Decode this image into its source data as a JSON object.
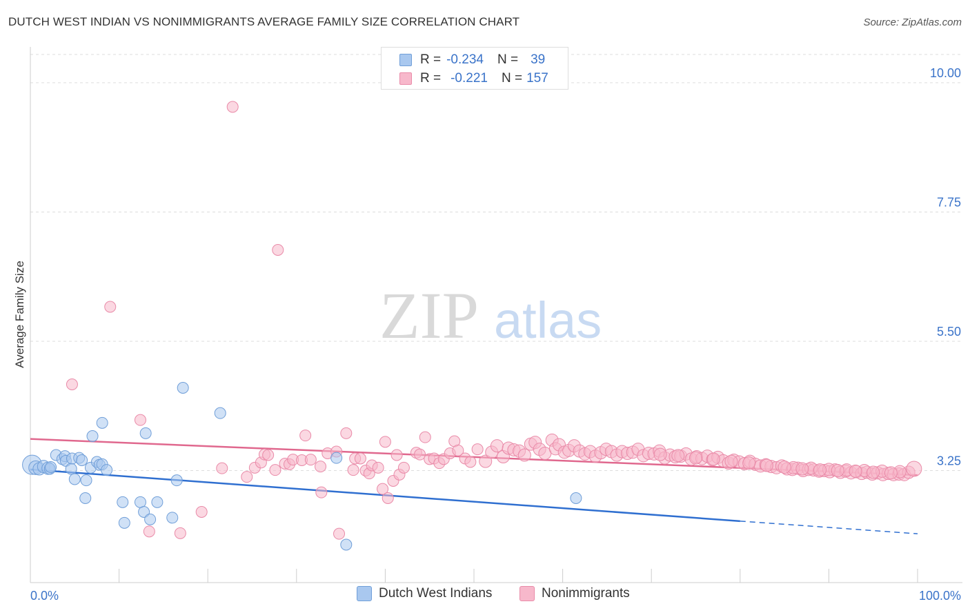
{
  "title": "DUTCH WEST INDIAN VS NONIMMIGRANTS AVERAGE FAMILY SIZE CORRELATION CHART",
  "source": "Source: ZipAtlas.com",
  "watermark": {
    "zip": "ZIP",
    "atlas": "atlas"
  },
  "legend_stats": [
    {
      "r_label": "R =",
      "r_value": "-0.234",
      "n_label": "N =",
      "n_value": "39",
      "color": "#a9c8ef",
      "border": "#6f9ed8"
    },
    {
      "r_label": "R =",
      "r_value": "-0.221",
      "n_label": "N =",
      "n_value": "157",
      "color": "#f7b8cb",
      "border": "#e98aa8"
    }
  ],
  "chart_data": {
    "type": "scatter",
    "title": "DUTCH WEST INDIAN VS NONIMMIGRANTS AVERAGE FAMILY SIZE CORRELATION CHART",
    "xlabel": "",
    "ylabel": "Average Family Size",
    "xlim": [
      0,
      100
    ],
    "ylim": [
      1.3,
      10.6
    ],
    "y_ticks": [
      3.25,
      5.5,
      7.75,
      10.0
    ],
    "y_tick_labels": [
      "3.25",
      "5.50",
      "7.75",
      "10.00"
    ],
    "x_tick_labels": [
      "0.0%",
      "100.0%"
    ],
    "grid": true,
    "legend": "bottom-center",
    "series": [
      {
        "name": "Dutch West Indians",
        "color": "#a9c8ef",
        "stroke": "#6f9ed8",
        "line_color": "#2f6fd0",
        "trend": {
          "x0": 0,
          "y0": 3.27,
          "x1": 80,
          "y1": 2.37,
          "dash_to": 100,
          "dash_y": 2.15
        },
        "points": [
          {
            "x": 0.2,
            "y": 3.35,
            "s": 14
          },
          {
            "x": 0.6,
            "y": 3.3,
            "s": 10
          },
          {
            "x": 1.0,
            "y": 3.28,
            "s": 9
          },
          {
            "x": 1.5,
            "y": 3.32,
            "s": 9
          },
          {
            "x": 2.0,
            "y": 3.29,
            "s": 9
          },
          {
            "x": 2.2,
            "y": 3.28,
            "s": 8
          },
          {
            "x": 2.3,
            "y": 3.31,
            "s": 8
          },
          {
            "x": 2.9,
            "y": 3.52,
            "s": 8
          },
          {
            "x": 3.6,
            "y": 3.45,
            "s": 8
          },
          {
            "x": 3.9,
            "y": 3.5,
            "s": 8
          },
          {
            "x": 4.0,
            "y": 3.42,
            "s": 8
          },
          {
            "x": 4.6,
            "y": 3.28,
            "s": 8
          },
          {
            "x": 5.0,
            "y": 3.1,
            "s": 8
          },
          {
            "x": 4.7,
            "y": 3.46,
            "s": 8
          },
          {
            "x": 5.5,
            "y": 3.47,
            "s": 8
          },
          {
            "x": 5.8,
            "y": 3.43,
            "s": 8
          },
          {
            "x": 6.8,
            "y": 3.3,
            "s": 8
          },
          {
            "x": 7.5,
            "y": 3.4,
            "s": 8
          },
          {
            "x": 6.2,
            "y": 2.77,
            "s": 8
          },
          {
            "x": 6.3,
            "y": 3.08,
            "s": 8
          },
          {
            "x": 7.0,
            "y": 3.85,
            "s": 8
          },
          {
            "x": 7.8,
            "y": 3.35,
            "s": 8
          },
          {
            "x": 8.1,
            "y": 3.36,
            "s": 8
          },
          {
            "x": 8.1,
            "y": 4.08,
            "s": 8
          },
          {
            "x": 8.6,
            "y": 3.26,
            "s": 8
          },
          {
            "x": 10.4,
            "y": 2.7,
            "s": 8
          },
          {
            "x": 10.6,
            "y": 2.34,
            "s": 8
          },
          {
            "x": 12.4,
            "y": 2.7,
            "s": 8
          },
          {
            "x": 12.8,
            "y": 2.53,
            "s": 8
          },
          {
            "x": 13.0,
            "y": 3.9,
            "s": 8
          },
          {
            "x": 13.5,
            "y": 2.4,
            "s": 8
          },
          {
            "x": 14.3,
            "y": 2.7,
            "s": 8
          },
          {
            "x": 16.0,
            "y": 2.43,
            "s": 8
          },
          {
            "x": 16.5,
            "y": 3.08,
            "s": 8
          },
          {
            "x": 17.2,
            "y": 4.69,
            "s": 8
          },
          {
            "x": 21.4,
            "y": 4.25,
            "s": 8
          },
          {
            "x": 34.5,
            "y": 3.47,
            "s": 8
          },
          {
            "x": 35.6,
            "y": 1.96,
            "s": 8
          },
          {
            "x": 61.5,
            "y": 2.77,
            "s": 8
          }
        ]
      },
      {
        "name": "Nonimmigrants",
        "color": "#f7b8cb",
        "stroke": "#e98aa8",
        "line_color": "#e0688e",
        "trend": {
          "x0": 0,
          "y0": 3.8,
          "x1": 100,
          "y1": 3.17
        },
        "points": [
          {
            "x": 22.8,
            "y": 9.58,
            "s": 8
          },
          {
            "x": 27.9,
            "y": 7.09,
            "s": 8
          },
          {
            "x": 9.0,
            "y": 6.1,
            "s": 8
          },
          {
            "x": 4.7,
            "y": 4.75,
            "s": 8
          },
          {
            "x": 12.4,
            "y": 4.13,
            "s": 8
          },
          {
            "x": 13.4,
            "y": 2.19,
            "s": 8
          },
          {
            "x": 19.3,
            "y": 2.53,
            "s": 8
          },
          {
            "x": 16.9,
            "y": 2.16,
            "s": 8
          },
          {
            "x": 34.8,
            "y": 2.15,
            "s": 8
          },
          {
            "x": 21.6,
            "y": 3.29,
            "s": 8
          },
          {
            "x": 24.4,
            "y": 3.14,
            "s": 8
          },
          {
            "x": 25.3,
            "y": 3.3,
            "s": 8
          },
          {
            "x": 26.0,
            "y": 3.39,
            "s": 8
          },
          {
            "x": 26.4,
            "y": 3.53,
            "s": 8
          },
          {
            "x": 26.8,
            "y": 3.52,
            "s": 8
          },
          {
            "x": 27.6,
            "y": 3.26,
            "s": 8
          },
          {
            "x": 28.7,
            "y": 3.37,
            "s": 8
          },
          {
            "x": 29.2,
            "y": 3.36,
            "s": 8
          },
          {
            "x": 29.6,
            "y": 3.44,
            "s": 8
          },
          {
            "x": 30.6,
            "y": 3.43,
            "s": 8
          },
          {
            "x": 31.0,
            "y": 3.86,
            "s": 8
          },
          {
            "x": 31.6,
            "y": 3.44,
            "s": 8
          },
          {
            "x": 32.7,
            "y": 3.32,
            "s": 8
          },
          {
            "x": 32.8,
            "y": 2.87,
            "s": 8
          },
          {
            "x": 33.5,
            "y": 3.55,
            "s": 8
          },
          {
            "x": 34.5,
            "y": 3.58,
            "s": 8
          },
          {
            "x": 35.6,
            "y": 3.9,
            "s": 8
          },
          {
            "x": 36.4,
            "y": 3.26,
            "s": 8
          },
          {
            "x": 36.6,
            "y": 3.46,
            "s": 8
          },
          {
            "x": 37.2,
            "y": 3.46,
            "s": 8
          },
          {
            "x": 37.8,
            "y": 3.25,
            "s": 8
          },
          {
            "x": 38.2,
            "y": 3.2,
            "s": 8
          },
          {
            "x": 38.5,
            "y": 3.34,
            "s": 8
          },
          {
            "x": 39.2,
            "y": 3.3,
            "s": 8
          },
          {
            "x": 39.7,
            "y": 2.93,
            "s": 8
          },
          {
            "x": 40.0,
            "y": 3.75,
            "s": 8
          },
          {
            "x": 40.3,
            "y": 2.77,
            "s": 8
          },
          {
            "x": 40.9,
            "y": 3.07,
            "s": 8
          },
          {
            "x": 41.3,
            "y": 3.52,
            "s": 8
          },
          {
            "x": 41.6,
            "y": 3.18,
            "s": 8
          },
          {
            "x": 42.1,
            "y": 3.3,
            "s": 8
          },
          {
            "x": 43.5,
            "y": 3.56,
            "s": 8
          },
          {
            "x": 43.9,
            "y": 3.53,
            "s": 8
          },
          {
            "x": 44.5,
            "y": 3.83,
            "s": 8
          },
          {
            "x": 45.0,
            "y": 3.45,
            "s": 8
          },
          {
            "x": 45.5,
            "y": 3.46,
            "s": 8
          },
          {
            "x": 46.1,
            "y": 3.38,
            "s": 8
          },
          {
            "x": 46.6,
            "y": 3.45,
            "s": 8
          },
          {
            "x": 47.3,
            "y": 3.55,
            "s": 8
          },
          {
            "x": 47.8,
            "y": 3.76,
            "s": 8
          },
          {
            "x": 48.2,
            "y": 3.6,
            "s": 8
          },
          {
            "x": 49.0,
            "y": 3.46,
            "s": 8
          },
          {
            "x": 49.6,
            "y": 3.4,
            "s": 8
          },
          {
            "x": 50.4,
            "y": 3.62,
            "s": 8
          },
          {
            "x": 51.3,
            "y": 3.41,
            "s": 9
          },
          {
            "x": 52.0,
            "y": 3.57,
            "s": 9
          },
          {
            "x": 52.6,
            "y": 3.68,
            "s": 9
          },
          {
            "x": 53.3,
            "y": 3.49,
            "s": 9
          },
          {
            "x": 53.9,
            "y": 3.64,
            "s": 9
          },
          {
            "x": 54.5,
            "y": 3.61,
            "s": 9
          },
          {
            "x": 55.1,
            "y": 3.59,
            "s": 9
          },
          {
            "x": 55.7,
            "y": 3.52,
            "s": 9
          },
          {
            "x": 56.4,
            "y": 3.71,
            "s": 9
          },
          {
            "x": 56.9,
            "y": 3.74,
            "s": 9
          },
          {
            "x": 57.4,
            "y": 3.62,
            "s": 9
          },
          {
            "x": 58.0,
            "y": 3.55,
            "s": 9
          },
          {
            "x": 58.8,
            "y": 3.78,
            "s": 9
          },
          {
            "x": 59.2,
            "y": 3.63,
            "s": 9
          },
          {
            "x": 59.6,
            "y": 3.7,
            "s": 9
          },
          {
            "x": 60.2,
            "y": 3.57,
            "s": 9
          },
          {
            "x": 60.7,
            "y": 3.6,
            "s": 9
          },
          {
            "x": 61.3,
            "y": 3.68,
            "s": 9
          },
          {
            "x": 61.9,
            "y": 3.59,
            "s": 9
          },
          {
            "x": 62.5,
            "y": 3.54,
            "s": 9
          },
          {
            "x": 63.1,
            "y": 3.58,
            "s": 9
          },
          {
            "x": 63.7,
            "y": 3.5,
            "s": 9
          },
          {
            "x": 64.3,
            "y": 3.56,
            "s": 9
          },
          {
            "x": 64.9,
            "y": 3.62,
            "s": 9
          },
          {
            "x": 65.5,
            "y": 3.58,
            "s": 9
          },
          {
            "x": 66.1,
            "y": 3.52,
            "s": 9
          },
          {
            "x": 66.7,
            "y": 3.58,
            "s": 9
          },
          {
            "x": 67.3,
            "y": 3.55,
            "s": 9
          },
          {
            "x": 67.9,
            "y": 3.57,
            "s": 9
          },
          {
            "x": 68.5,
            "y": 3.62,
            "s": 9
          },
          {
            "x": 69.1,
            "y": 3.51,
            "s": 9
          },
          {
            "x": 69.7,
            "y": 3.55,
            "s": 9
          },
          {
            "x": 70.3,
            "y": 3.54,
            "s": 9
          },
          {
            "x": 70.9,
            "y": 3.59,
            "s": 9
          },
          {
            "x": 71.5,
            "y": 3.47,
            "s": 9
          },
          {
            "x": 72.1,
            "y": 3.52,
            "s": 9
          },
          {
            "x": 72.7,
            "y": 3.49,
            "s": 9
          },
          {
            "x": 73.3,
            "y": 3.5,
            "s": 9
          },
          {
            "x": 73.9,
            "y": 3.54,
            "s": 9
          },
          {
            "x": 74.5,
            "y": 3.45,
            "s": 9
          },
          {
            "x": 75.1,
            "y": 3.49,
            "s": 9
          },
          {
            "x": 75.7,
            "y": 3.46,
            "s": 9
          },
          {
            "x": 76.3,
            "y": 3.5,
            "s": 9
          },
          {
            "x": 76.9,
            "y": 3.44,
            "s": 9
          },
          {
            "x": 77.5,
            "y": 3.48,
            "s": 9
          },
          {
            "x": 78.1,
            "y": 3.42,
            "s": 9
          },
          {
            "x": 78.7,
            "y": 3.38,
            "s": 9
          },
          {
            "x": 79.3,
            "y": 3.43,
            "s": 9
          },
          {
            "x": 79.9,
            "y": 3.4,
            "s": 9
          },
          {
            "x": 80.5,
            "y": 3.37,
            "s": 9
          },
          {
            "x": 81.1,
            "y": 3.41,
            "s": 9
          },
          {
            "x": 81.7,
            "y": 3.36,
            "s": 9
          },
          {
            "x": 82.3,
            "y": 3.33,
            "s": 9
          },
          {
            "x": 82.9,
            "y": 3.35,
            "s": 9
          },
          {
            "x": 83.5,
            "y": 3.32,
            "s": 9
          },
          {
            "x": 84.1,
            "y": 3.3,
            "s": 9
          },
          {
            "x": 84.7,
            "y": 3.33,
            "s": 9
          },
          {
            "x": 85.3,
            "y": 3.28,
            "s": 9
          },
          {
            "x": 85.9,
            "y": 3.27,
            "s": 9
          },
          {
            "x": 86.5,
            "y": 3.29,
            "s": 9
          },
          {
            "x": 87.1,
            "y": 3.25,
            "s": 9
          },
          {
            "x": 87.7,
            "y": 3.27,
            "s": 9
          },
          {
            "x": 88.3,
            "y": 3.26,
            "s": 9
          },
          {
            "x": 88.9,
            "y": 3.24,
            "s": 9
          },
          {
            "x": 89.5,
            "y": 3.25,
            "s": 9
          },
          {
            "x": 90.1,
            "y": 3.23,
            "s": 9
          },
          {
            "x": 90.7,
            "y": 3.26,
            "s": 9
          },
          {
            "x": 91.3,
            "y": 3.22,
            "s": 9
          },
          {
            "x": 91.9,
            "y": 3.24,
            "s": 9
          },
          {
            "x": 92.5,
            "y": 3.21,
            "s": 9
          },
          {
            "x": 93.1,
            "y": 3.23,
            "s": 9
          },
          {
            "x": 93.7,
            "y": 3.2,
            "s": 9
          },
          {
            "x": 94.3,
            "y": 3.22,
            "s": 9
          },
          {
            "x": 94.9,
            "y": 3.19,
            "s": 9
          },
          {
            "x": 95.5,
            "y": 3.21,
            "s": 9
          },
          {
            "x": 96.1,
            "y": 3.18,
            "s": 9
          },
          {
            "x": 96.7,
            "y": 3.2,
            "s": 9
          },
          {
            "x": 97.3,
            "y": 3.18,
            "s": 9
          },
          {
            "x": 97.9,
            "y": 3.19,
            "s": 9
          },
          {
            "x": 98.5,
            "y": 3.18,
            "s": 9
          },
          {
            "x": 99.0,
            "y": 3.22,
            "s": 9
          },
          {
            "x": 99.6,
            "y": 3.28,
            "s": 11
          },
          {
            "x": 86.0,
            "y": 3.3,
            "s": 9
          },
          {
            "x": 88.0,
            "y": 3.29,
            "s": 9
          },
          {
            "x": 90.0,
            "y": 3.27,
            "s": 9
          },
          {
            "x": 92.0,
            "y": 3.26,
            "s": 9
          },
          {
            "x": 94.0,
            "y": 3.25,
            "s": 9
          },
          {
            "x": 96.0,
            "y": 3.24,
            "s": 9
          },
          {
            "x": 98.0,
            "y": 3.23,
            "s": 9
          },
          {
            "x": 85.0,
            "y": 3.31,
            "s": 9
          },
          {
            "x": 87.0,
            "y": 3.28,
            "s": 9
          },
          {
            "x": 89.0,
            "y": 3.26,
            "s": 9
          },
          {
            "x": 91.0,
            "y": 3.25,
            "s": 9
          },
          {
            "x": 93.0,
            "y": 3.24,
            "s": 9
          },
          {
            "x": 95.0,
            "y": 3.22,
            "s": 9
          },
          {
            "x": 97.0,
            "y": 3.21,
            "s": 9
          },
          {
            "x": 83.0,
            "y": 3.34,
            "s": 9
          },
          {
            "x": 81.0,
            "y": 3.38,
            "s": 9
          },
          {
            "x": 79.0,
            "y": 3.41,
            "s": 9
          },
          {
            "x": 77.0,
            "y": 3.45,
            "s": 9
          },
          {
            "x": 75.0,
            "y": 3.47,
            "s": 9
          },
          {
            "x": 73.0,
            "y": 3.51,
            "s": 9
          },
          {
            "x": 71.0,
            "y": 3.53,
            "s": 9
          }
        ]
      }
    ]
  }
}
